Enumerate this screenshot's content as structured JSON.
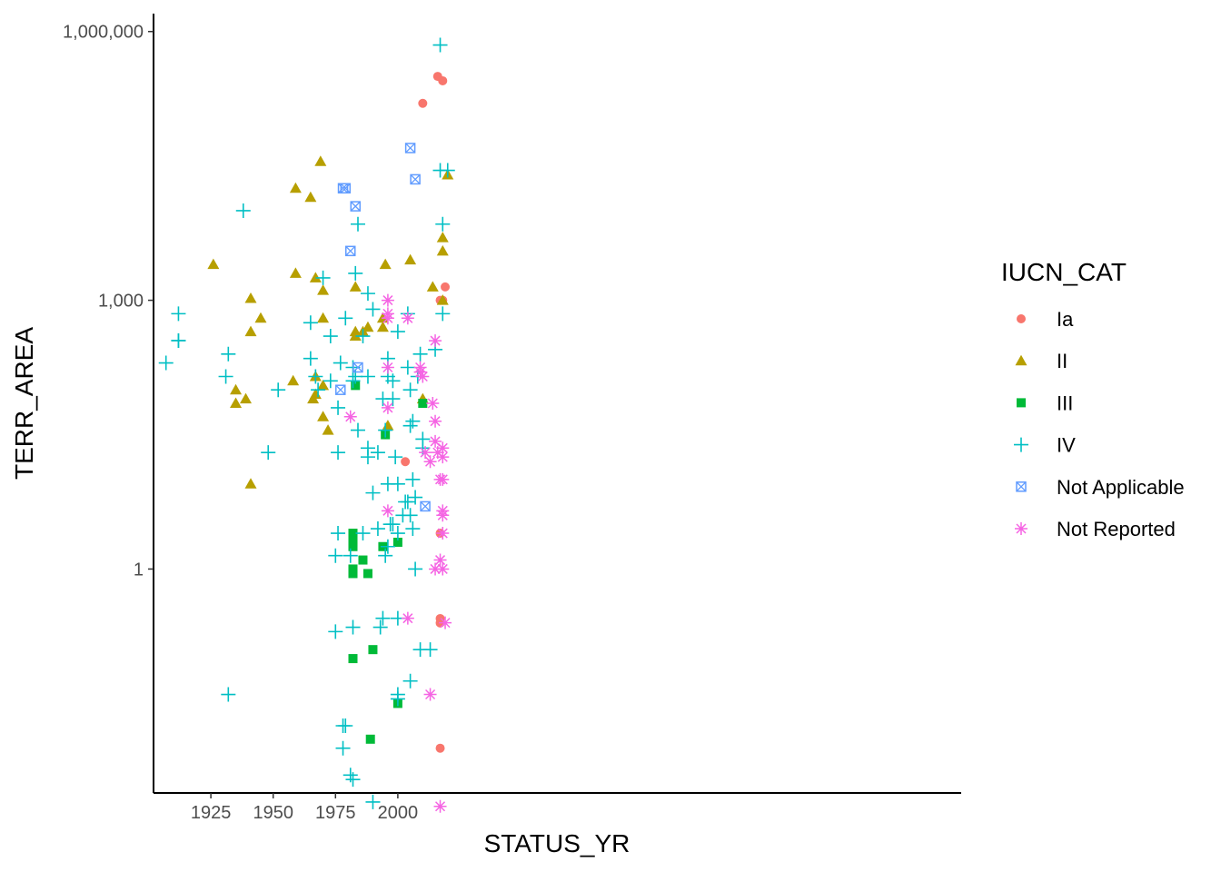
{
  "chart_data": {
    "type": "scatter",
    "title": "",
    "xlabel": "STATUS_YR",
    "ylabel": "TERR_AREA",
    "xlim": [
      1902,
      2226
    ],
    "ylim_log10": [
      -2.5,
      6.2
    ],
    "y_scale": "log10",
    "x_ticks": [
      1925,
      1950,
      1975,
      2000
    ],
    "x_tick_labels": [
      "1925",
      "1950",
      "1975",
      "2000"
    ],
    "y_ticks": [
      1,
      1000,
      1000000
    ],
    "y_tick_labels": [
      "1",
      "1,000",
      "1,000,000"
    ],
    "grid": false,
    "legend": {
      "title": "IUCN_CAT",
      "position": "right",
      "entries": [
        "Ia",
        "II",
        "III",
        "IV",
        "Not Applicable",
        "Not Reported"
      ]
    },
    "series": [
      {
        "name": "Ia",
        "shape": "circle",
        "color": "#F8766D",
        "points": [
          {
            "x": 2003,
            "y": 15.8
          },
          {
            "x": 2010,
            "y": 158000
          },
          {
            "x": 2016,
            "y": 316000
          },
          {
            "x": 2018,
            "y": 282000
          },
          {
            "x": 2019,
            "y": 1410
          },
          {
            "x": 2017,
            "y": 1000
          },
          {
            "x": 2018,
            "y": 1000
          },
          {
            "x": 2017,
            "y": 2.51
          },
          {
            "x": 2017,
            "y": 0.28
          },
          {
            "x": 2017,
            "y": 0.25
          },
          {
            "x": 2017,
            "y": 0.01
          }
        ]
      },
      {
        "name": "II",
        "shape": "triangle",
        "color": "#B79F00",
        "points": [
          {
            "x": 1926,
            "y": 2510
          },
          {
            "x": 1941,
            "y": 1050
          },
          {
            "x": 1941,
            "y": 447
          },
          {
            "x": 1945,
            "y": 631
          },
          {
            "x": 1935,
            "y": 100
          },
          {
            "x": 1935,
            "y": 70.8
          },
          {
            "x": 1939,
            "y": 79.4
          },
          {
            "x": 1941,
            "y": 8.91
          },
          {
            "x": 1958,
            "y": 126
          },
          {
            "x": 1959,
            "y": 17800
          },
          {
            "x": 1959,
            "y": 2000
          },
          {
            "x": 1965,
            "y": 14100
          },
          {
            "x": 1969,
            "y": 35500
          },
          {
            "x": 1967,
            "y": 1780
          },
          {
            "x": 1970,
            "y": 1290
          },
          {
            "x": 1970,
            "y": 631
          },
          {
            "x": 1967,
            "y": 141
          },
          {
            "x": 1966,
            "y": 79.4
          },
          {
            "x": 1967,
            "y": 89.1
          },
          {
            "x": 1970,
            "y": 112
          },
          {
            "x": 1970,
            "y": 50.1
          },
          {
            "x": 1972,
            "y": 35.5
          },
          {
            "x": 1983,
            "y": 1410
          },
          {
            "x": 1983,
            "y": 398
          },
          {
            "x": 1983,
            "y": 447
          },
          {
            "x": 1986,
            "y": 447
          },
          {
            "x": 1988,
            "y": 501
          },
          {
            "x": 1994,
            "y": 631
          },
          {
            "x": 1994,
            "y": 501
          },
          {
            "x": 1995,
            "y": 2510
          },
          {
            "x": 1996,
            "y": 39.8
          },
          {
            "x": 2005,
            "y": 2820
          },
          {
            "x": 2010,
            "y": 79.4
          },
          {
            "x": 2014,
            "y": 1410
          },
          {
            "x": 2018,
            "y": 5010
          },
          {
            "x": 2018,
            "y": 3550
          },
          {
            "x": 2018,
            "y": 1000
          },
          {
            "x": 2020,
            "y": 25100
          }
        ]
      },
      {
        "name": "III",
        "shape": "square",
        "color": "#00BA38",
        "points": [
          {
            "x": 1983,
            "y": 112
          },
          {
            "x": 1982,
            "y": 2.51
          },
          {
            "x": 1982,
            "y": 2.0
          },
          {
            "x": 1982,
            "y": 1.78
          },
          {
            "x": 1982,
            "y": 1.0
          },
          {
            "x": 1982,
            "y": 0.89
          },
          {
            "x": 1982,
            "y": 0.1
          },
          {
            "x": 1986,
            "y": 1.26
          },
          {
            "x": 1988,
            "y": 0.89
          },
          {
            "x": 1990,
            "y": 0.126
          },
          {
            "x": 1989,
            "y": 0.0126
          },
          {
            "x": 1994,
            "y": 1.78
          },
          {
            "x": 1995,
            "y": 31.6
          },
          {
            "x": 2000,
            "y": 1.99
          },
          {
            "x": 2000,
            "y": 0.0316
          },
          {
            "x": 2010,
            "y": 70.8
          }
        ]
      },
      {
        "name": "IV",
        "shape": "plus",
        "color": "#00BFC4",
        "points": [
          {
            "x": 1907,
            "y": 200
          },
          {
            "x": 1912,
            "y": 708
          },
          {
            "x": 1912,
            "y": 355
          },
          {
            "x": 1912,
            "y": 355
          },
          {
            "x": 1931,
            "y": 141
          },
          {
            "x": 1932,
            "y": 251
          },
          {
            "x": 1932,
            "y": 0.0398
          },
          {
            "x": 1938,
            "y": 10000
          },
          {
            "x": 1948,
            "y": 20
          },
          {
            "x": 1952,
            "y": 100
          },
          {
            "x": 1965,
            "y": 562
          },
          {
            "x": 1965,
            "y": 224
          },
          {
            "x": 1967,
            "y": 141
          },
          {
            "x": 1968,
            "y": 100
          },
          {
            "x": 1970,
            "y": 1780
          },
          {
            "x": 1973,
            "y": 398
          },
          {
            "x": 1973,
            "y": 126
          },
          {
            "x": 1975,
            "y": 1.41
          },
          {
            "x": 1975,
            "y": 0.2
          },
          {
            "x": 1976,
            "y": 63.1
          },
          {
            "x": 1976,
            "y": 20
          },
          {
            "x": 1976,
            "y": 2.51
          },
          {
            "x": 1977,
            "y": 200
          },
          {
            "x": 1978,
            "y": 0.0178
          },
          {
            "x": 1978,
            "y": 0.01
          },
          {
            "x": 1979,
            "y": 0.0178
          },
          {
            "x": 1979,
            "y": 631
          },
          {
            "x": 1981,
            "y": 1.41
          },
          {
            "x": 1981,
            "y": 0.00501
          },
          {
            "x": 1982,
            "y": 178
          },
          {
            "x": 1982,
            "y": 126
          },
          {
            "x": 1982,
            "y": 0.224
          },
          {
            "x": 1982,
            "y": 0.00447
          },
          {
            "x": 1983,
            "y": 2000
          },
          {
            "x": 1983,
            "y": 141
          },
          {
            "x": 1984,
            "y": 7080
          },
          {
            "x": 1984,
            "y": 35.5
          },
          {
            "x": 1986,
            "y": 2.51
          },
          {
            "x": 1986,
            "y": 398
          },
          {
            "x": 1988,
            "y": 1190
          },
          {
            "x": 1988,
            "y": 141
          },
          {
            "x": 1988,
            "y": 22.4
          },
          {
            "x": 1988,
            "y": 17.8
          },
          {
            "x": 1990,
            "y": 794
          },
          {
            "x": 1990,
            "y": 7.08
          },
          {
            "x": 1990,
            "y": 0.00251
          },
          {
            "x": 1992,
            "y": 20
          },
          {
            "x": 1992,
            "y": 2.82
          },
          {
            "x": 1993,
            "y": 0.224
          },
          {
            "x": 1994,
            "y": 79.4
          },
          {
            "x": 1994,
            "y": 0.282
          },
          {
            "x": 1995,
            "y": 1.41
          },
          {
            "x": 1995,
            "y": 35.5
          },
          {
            "x": 1996,
            "y": 224
          },
          {
            "x": 1996,
            "y": 141
          },
          {
            "x": 1996,
            "y": 8.91
          },
          {
            "x": 1996,
            "y": 1.78
          },
          {
            "x": 1997,
            "y": 3.16
          },
          {
            "x": 1998,
            "y": 3.16
          },
          {
            "x": 1998,
            "y": 126
          },
          {
            "x": 1998,
            "y": 79.4
          },
          {
            "x": 1999,
            "y": 17.8
          },
          {
            "x": 2000,
            "y": 447
          },
          {
            "x": 2000,
            "y": 8.91
          },
          {
            "x": 2000,
            "y": 2.51
          },
          {
            "x": 2000,
            "y": 0.282
          },
          {
            "x": 2000,
            "y": 0.0398
          },
          {
            "x": 2000,
            "y": 0.0355
          },
          {
            "x": 2002,
            "y": 3.98
          },
          {
            "x": 2003,
            "y": 5.62
          },
          {
            "x": 2004,
            "y": 708
          },
          {
            "x": 2004,
            "y": 178
          },
          {
            "x": 2004,
            "y": 5.62
          },
          {
            "x": 2005,
            "y": 100
          },
          {
            "x": 2005,
            "y": 39.8
          },
          {
            "x": 2005,
            "y": 3.98
          },
          {
            "x": 2005,
            "y": 0.0562
          },
          {
            "x": 2006,
            "y": 10
          },
          {
            "x": 2006,
            "y": 2.82
          },
          {
            "x": 2006,
            "y": 44.7
          },
          {
            "x": 2007,
            "y": 6.31
          },
          {
            "x": 2007,
            "y": 1.0
          },
          {
            "x": 2008,
            "y": 141
          },
          {
            "x": 2009,
            "y": 251
          },
          {
            "x": 2009,
            "y": 0.126
          },
          {
            "x": 2010,
            "y": 28.2
          },
          {
            "x": 2010,
            "y": 22.4
          },
          {
            "x": 2013,
            "y": 0.126
          },
          {
            "x": 2015,
            "y": 282
          },
          {
            "x": 2017,
            "y": 708000
          },
          {
            "x": 2017,
            "y": 28200
          },
          {
            "x": 2018,
            "y": 7080
          },
          {
            "x": 2018,
            "y": 708
          },
          {
            "x": 2020,
            "y": 28200
          }
        ]
      },
      {
        "name": "Not Applicable",
        "shape": "square-cross",
        "color": "#619CFF",
        "points": [
          {
            "x": 1977,
            "y": 100
          },
          {
            "x": 1978,
            "y": 17800
          },
          {
            "x": 1979,
            "y": 17800
          },
          {
            "x": 1981,
            "y": 3550
          },
          {
            "x": 1983,
            "y": 11200
          },
          {
            "x": 1984,
            "y": 178
          },
          {
            "x": 2005,
            "y": 50100
          },
          {
            "x": 2007,
            "y": 22400
          },
          {
            "x": 2011,
            "y": 5.01
          }
        ]
      },
      {
        "name": "Not Reported",
        "shape": "asterisk",
        "color": "#F564E3",
        "points": [
          {
            "x": 1981,
            "y": 50.1
          },
          {
            "x": 1996,
            "y": 1000
          },
          {
            "x": 1996,
            "y": 708
          },
          {
            "x": 1996,
            "y": 631
          },
          {
            "x": 1996,
            "y": 178
          },
          {
            "x": 1996,
            "y": 63.1
          },
          {
            "x": 1996,
            "y": 4.47
          },
          {
            "x": 2004,
            "y": 631
          },
          {
            "x": 2004,
            "y": 0.282
          },
          {
            "x": 2009,
            "y": 178
          },
          {
            "x": 2009,
            "y": 158
          },
          {
            "x": 2010,
            "y": 141
          },
          {
            "x": 2011,
            "y": 20
          },
          {
            "x": 2013,
            "y": 15.8
          },
          {
            "x": 2014,
            "y": 70.8
          },
          {
            "x": 2015,
            "y": 44.7
          },
          {
            "x": 2015,
            "y": 26.6
          },
          {
            "x": 2015,
            "y": 354
          },
          {
            "x": 2015,
            "y": 1.0
          },
          {
            "x": 2016,
            "y": 20
          },
          {
            "x": 2017,
            "y": 10
          },
          {
            "x": 2017,
            "y": 1.26
          },
          {
            "x": 2018,
            "y": 22.4
          },
          {
            "x": 2018,
            "y": 17.8
          },
          {
            "x": 2018,
            "y": 10
          },
          {
            "x": 2018,
            "y": 4.47
          },
          {
            "x": 2018,
            "y": 3.98
          },
          {
            "x": 2018,
            "y": 2.51
          },
          {
            "x": 2018,
            "y": 1.0
          },
          {
            "x": 2019,
            "y": 0.251
          },
          {
            "x": 2013,
            "y": 0.0398
          },
          {
            "x": 2017,
            "y": 0.00224
          }
        ]
      }
    ]
  }
}
